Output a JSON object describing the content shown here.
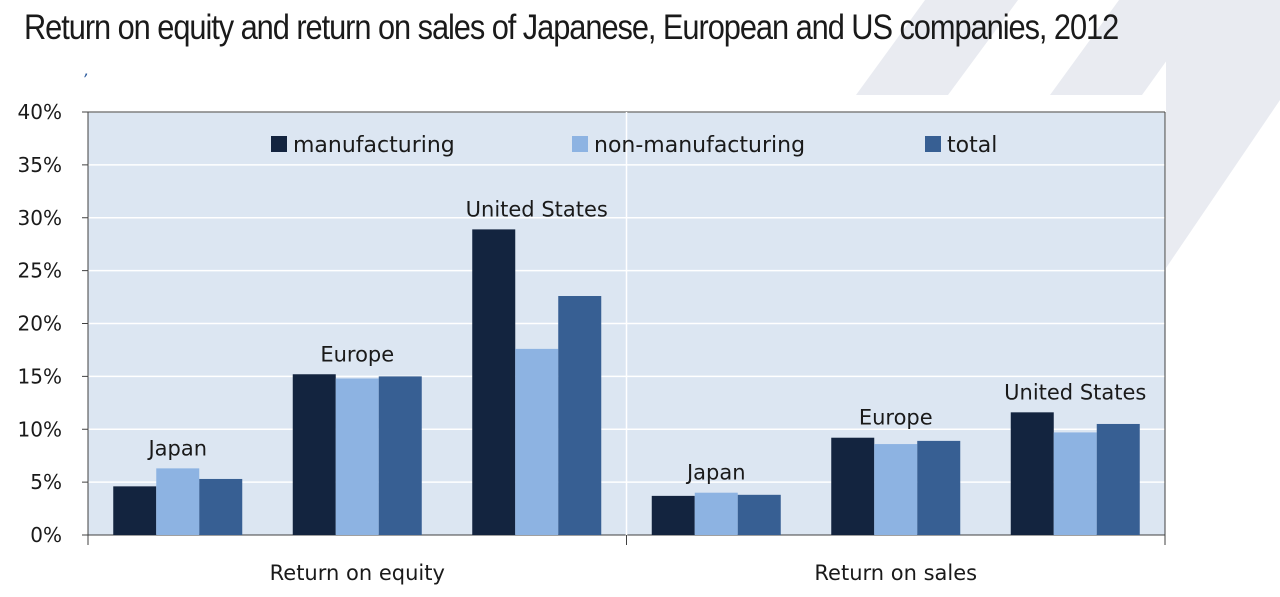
{
  "title": "Return on equity and return on sales of Japanese, European and US companies, 2012",
  "tick_mark": "’",
  "chart_data": {
    "type": "bar",
    "ylim": [
      0,
      40
    ],
    "y_ticks": [
      {
        "value": 0,
        "label": "0%"
      },
      {
        "value": 5,
        "label": "5%"
      },
      {
        "value": 10,
        "label": "10%"
      },
      {
        "value": 15,
        "label": "15%"
      },
      {
        "value": 20,
        "label": "20%"
      },
      {
        "value": 25,
        "label": "25%"
      },
      {
        "value": 30,
        "label": "30%"
      },
      {
        "value": 35,
        "label": "35%"
      },
      {
        "value": 40,
        "label": "40%"
      }
    ],
    "grid": true,
    "legend_placement": "top",
    "series": [
      {
        "name": "manufacturing",
        "color": "#13243f"
      },
      {
        "name": "non-manufacturing",
        "color": "#8db3e2"
      },
      {
        "name": "total",
        "color": "#375f93"
      }
    ],
    "panels": [
      {
        "label": "Return on equity",
        "groups": [
          {
            "label": "Japan",
            "values": [
              4.6,
              6.3,
              5.3
            ]
          },
          {
            "label": "Europe",
            "values": [
              15.2,
              14.8,
              15.0
            ]
          },
          {
            "label": "United States",
            "values": [
              28.9,
              17.6,
              22.6
            ]
          }
        ]
      },
      {
        "label": "Return on sales",
        "groups": [
          {
            "label": "Japan",
            "values": [
              3.7,
              4.0,
              3.8
            ]
          },
          {
            "label": "Europe",
            "values": [
              9.2,
              8.6,
              8.9
            ]
          },
          {
            "label": "United States",
            "values": [
              11.6,
              9.7,
              10.5
            ]
          }
        ]
      }
    ]
  }
}
